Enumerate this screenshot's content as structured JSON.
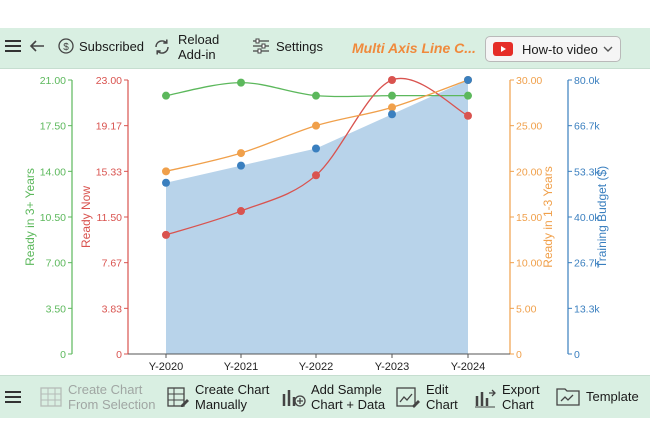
{
  "toolbar": {
    "back_icon": "arrow-left-icon",
    "subscribed_label": "Subscribed",
    "reload_label": "Reload\nAdd-in",
    "settings_label": "Settings",
    "chart_title": "Multi Axis Line C...",
    "howto_label": "How-to video"
  },
  "bottom_toolbar": {
    "create_from_selection": "Create Chart\nFrom Selection",
    "create_manually": "Create Chart\nManually",
    "add_sample": "Add Sample\nChart + Data",
    "edit_chart": "Edit\nChart",
    "export_chart": "Export\nChart",
    "template": "Template"
  },
  "colors": {
    "green": "#5cb85c",
    "red": "#d9534f",
    "orange": "#f0a04b",
    "blue": "#3a7fbf",
    "area": "#b8d3ea",
    "youtube": "#e52d27"
  },
  "chart_data": {
    "type": "line",
    "categories": [
      "Y-2020",
      "Y-2021",
      "Y-2022",
      "Y-2023",
      "Y-2024"
    ],
    "axes": {
      "ready3": {
        "label": "Ready in 3+ Years",
        "ticks": [
          "21.00",
          "17.50",
          "14.00",
          "10.50",
          "7.00",
          "3.50",
          "0"
        ],
        "range": [
          0,
          21
        ]
      },
      "readyNow": {
        "label": "Ready Now",
        "ticks": [
          "23.00",
          "19.17",
          "15.33",
          "11.50",
          "7.67",
          "3.83",
          "0"
        ],
        "range": [
          0,
          23
        ]
      },
      "ready13": {
        "label": "Ready in 1-3 Years",
        "ticks": [
          "30.00",
          "25.00",
          "20.00",
          "15.00",
          "10.00",
          "5.00",
          "0"
        ],
        "range": [
          0,
          30
        ]
      },
      "budget": {
        "label": "Training Budget ($)",
        "ticks": [
          "80.0k",
          "66.7k",
          "53.3k",
          "40.0k",
          "26.7k",
          "13.3k",
          "0"
        ],
        "range": [
          0,
          80000
        ]
      }
    },
    "series": [
      {
        "name": "Ready in 3+ Years",
        "axis": "ready3",
        "color": "#5cb85c",
        "values": [
          19.8,
          20.8,
          19.8,
          19.8,
          19.8
        ]
      },
      {
        "name": "Ready Now",
        "axis": "readyNow",
        "color": "#d9534f",
        "values": [
          10.0,
          12.0,
          15.0,
          23.0,
          20.0
        ]
      },
      {
        "name": "Ready in 1-3 Years",
        "axis": "ready13",
        "color": "#f0a04b",
        "values": [
          20.0,
          22.0,
          25.0,
          27.0,
          30.0
        ]
      },
      {
        "name": "Training Budget ($)",
        "axis": "budget",
        "color": "#3a7fbf",
        "type": "area",
        "values": [
          50000,
          55000,
          60000,
          70000,
          80000
        ]
      }
    ]
  }
}
